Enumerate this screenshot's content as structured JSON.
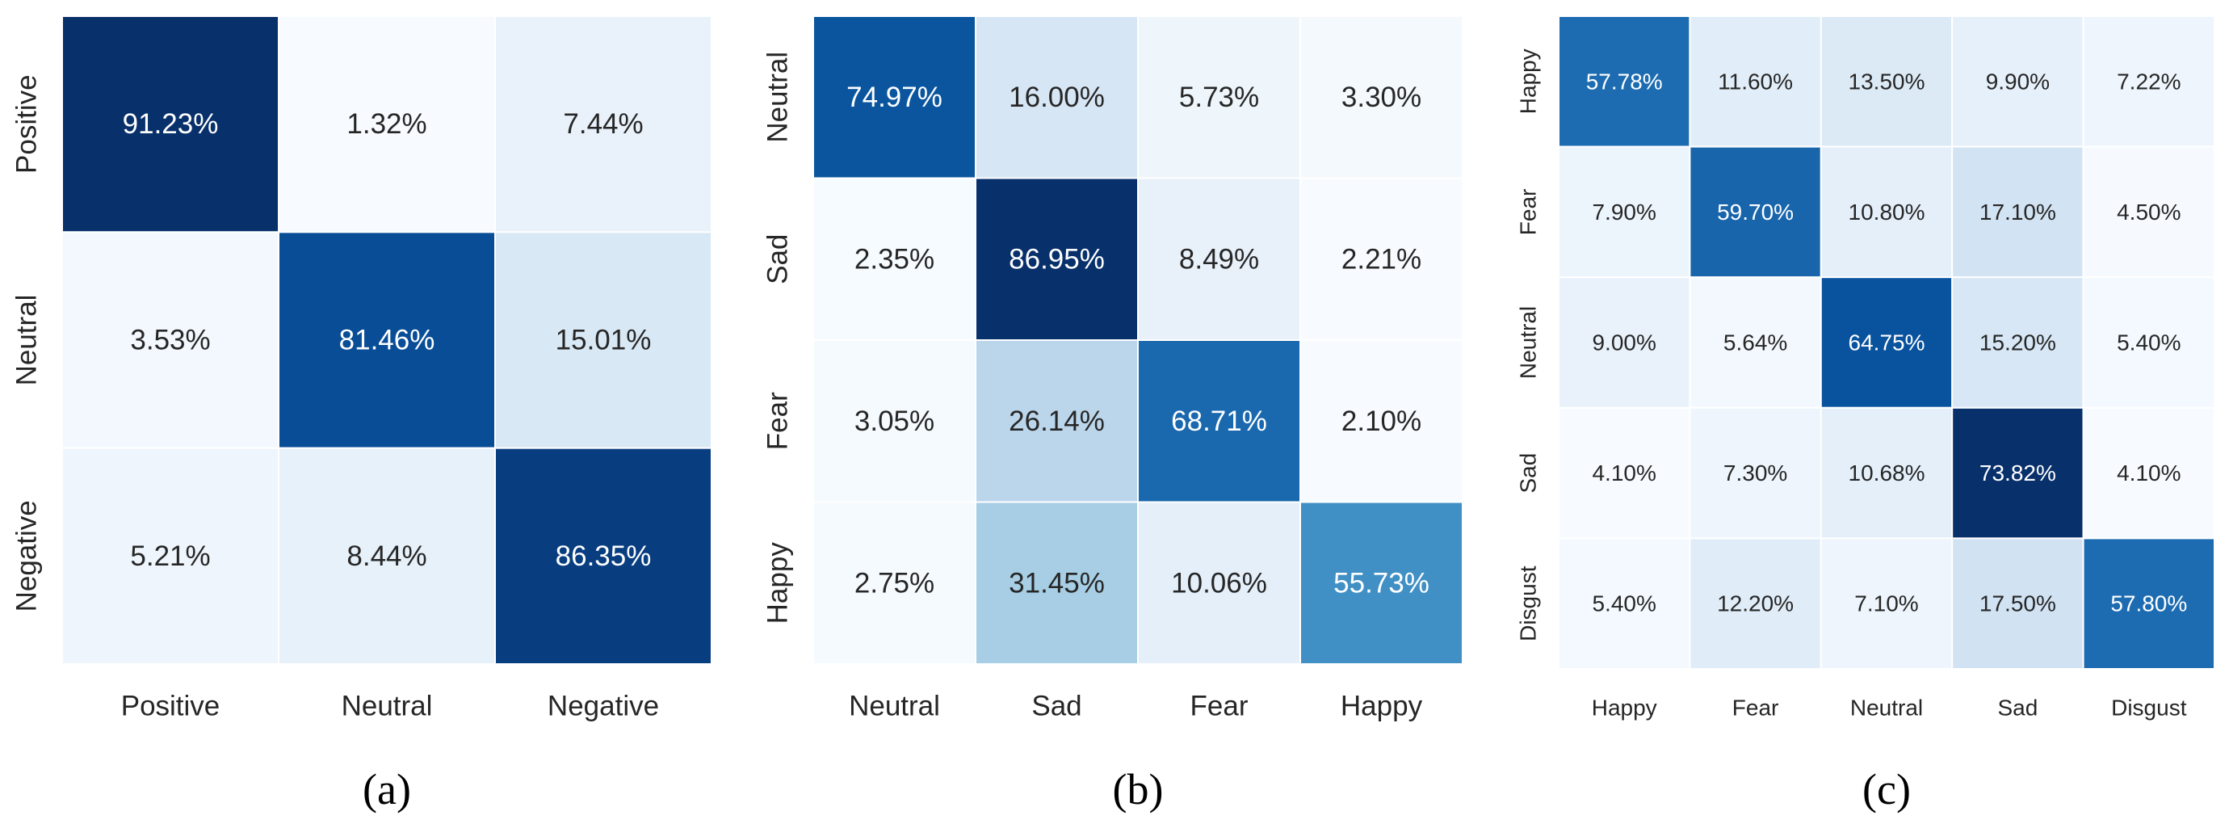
{
  "chart_data": [
    {
      "type": "heatmap",
      "caption": "(a)",
      "rows": [
        "Positive",
        "Neutral",
        "Negative"
      ],
      "columns": [
        "Positive",
        "Neutral",
        "Negative"
      ],
      "values": [
        [
          91.23,
          1.32,
          7.44
        ],
        [
          3.53,
          81.46,
          15.01
        ],
        [
          5.21,
          8.44,
          86.35
        ]
      ],
      "labels": [
        [
          "91.23%",
          "1.32%",
          "7.44%"
        ],
        [
          "3.53%",
          "81.46%",
          "15.01%"
        ],
        [
          "5.21%",
          "8.44%",
          "86.35%"
        ]
      ],
      "colorscale": "Blues"
    },
    {
      "type": "heatmap",
      "caption": "(b)",
      "rows": [
        "Neutral",
        "Sad",
        "Fear",
        "Happy"
      ],
      "columns": [
        "Neutral",
        "Sad",
        "Fear",
        "Happy"
      ],
      "values": [
        [
          74.97,
          16.0,
          5.73,
          3.3
        ],
        [
          2.35,
          86.95,
          8.49,
          2.21
        ],
        [
          3.05,
          26.14,
          68.71,
          2.1
        ],
        [
          2.75,
          31.45,
          10.06,
          55.73
        ]
      ],
      "labels": [
        [
          "74.97%",
          "16.00%",
          "5.73%",
          "3.30%"
        ],
        [
          "2.35%",
          "86.95%",
          "8.49%",
          "2.21%"
        ],
        [
          "3.05%",
          "26.14%",
          "68.71%",
          "2.10%"
        ],
        [
          "2.75%",
          "31.45%",
          "10.06%",
          "55.73%"
        ]
      ],
      "colorscale": "Blues"
    },
    {
      "type": "heatmap",
      "caption": "(c)",
      "rows": [
        "Happy",
        "Fear",
        "Neutral",
        "Sad",
        "Disgust"
      ],
      "columns": [
        "Happy",
        "Fear",
        "Neutral",
        "Sad",
        "Disgust"
      ],
      "values": [
        [
          57.78,
          11.6,
          13.5,
          9.9,
          7.22
        ],
        [
          7.9,
          59.7,
          10.8,
          17.1,
          4.5
        ],
        [
          9.0,
          5.64,
          64.75,
          15.2,
          5.4
        ],
        [
          4.1,
          7.3,
          10.68,
          73.82,
          4.1
        ],
        [
          5.4,
          12.2,
          7.1,
          17.5,
          57.8
        ]
      ],
      "labels": [
        [
          "57.78%",
          "11.60%",
          "13.50%",
          "9.90%",
          "7.22%"
        ],
        [
          "7.90%",
          "59.70%",
          "10.80%",
          "17.10%",
          "4.50%"
        ],
        [
          "9.00%",
          "5.64%",
          "64.75%",
          "15.20%",
          "5.40%"
        ],
        [
          "4.10%",
          "7.30%",
          "10.68%",
          "73.82%",
          "4.10%"
        ],
        [
          "5.40%",
          "12.20%",
          "7.10%",
          "17.50%",
          "57.80%"
        ]
      ],
      "colorscale": "Blues"
    }
  ]
}
